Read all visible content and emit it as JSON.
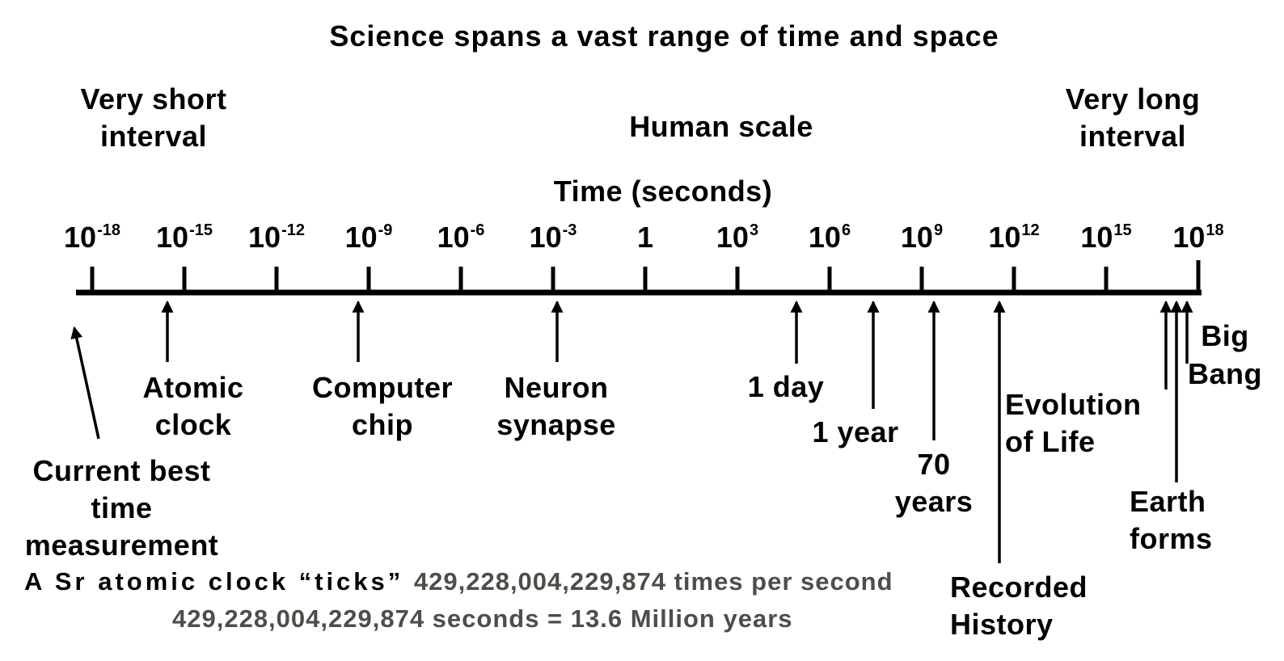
{
  "title": "Science spans a vast range of time and space",
  "region_labels": {
    "very_short": "Very short\ninterval",
    "human_scale": "Human scale",
    "very_long": "Very long\ninterval"
  },
  "axis": {
    "label": "Time (seconds)",
    "ticks": [
      {
        "base": "10",
        "exp": "-18"
      },
      {
        "base": "10",
        "exp": "-15"
      },
      {
        "base": "10",
        "exp": "-12"
      },
      {
        "base": "10",
        "exp": "-9"
      },
      {
        "base": "10",
        "exp": "-6"
      },
      {
        "base": "10",
        "exp": "-3"
      },
      {
        "base": "1",
        "exp": ""
      },
      {
        "base": "10",
        "exp": "3"
      },
      {
        "base": "10",
        "exp": "6"
      },
      {
        "base": "10",
        "exp": "9"
      },
      {
        "base": "10",
        "exp": "12"
      },
      {
        "base": "10",
        "exp": "15"
      },
      {
        "base": "10",
        "exp": "18"
      }
    ]
  },
  "annotations": {
    "current_best": "Current best\ntime\nmeasurement",
    "atomic_clock": "Atomic\nclock",
    "computer_chip": "Computer\nchip",
    "neuron_synapse": "Neuron\nsynapse",
    "one_day": "1 day",
    "one_year": "1 year",
    "seventy_years": "70\nyears",
    "evolution_of_life": "Evolution\nof Life",
    "recorded_history": "Recorded\nHistory",
    "earth_forms": "Earth\nforms",
    "big_bang": "Big\nBang"
  },
  "footnote": {
    "line1_black": "A Sr atomic clock “ticks” ",
    "line1_gray": "429,228,004,229,874 times per second",
    "line2_gray": "429,228,004,229,874 seconds = 13.6 Million years"
  },
  "colors": {
    "text": "#000000",
    "footnote_gray": "#4e4e49"
  }
}
